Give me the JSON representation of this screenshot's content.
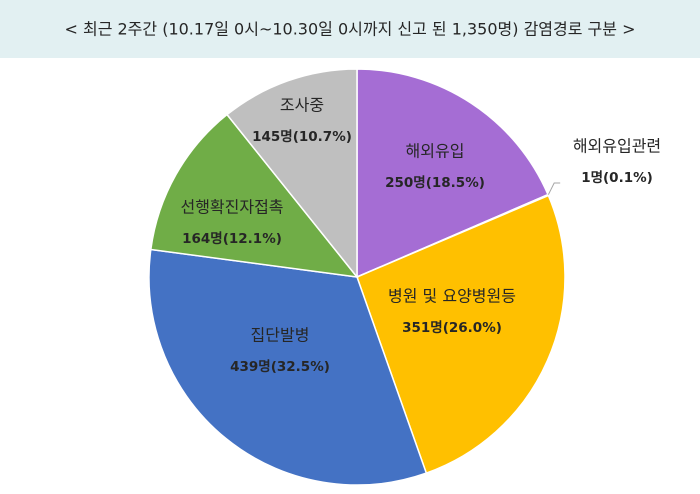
{
  "chart_data": {
    "type": "pie",
    "title": "< 최근 2주간 (10.17일 0시~10.30일 0시까지 신고 된 1,350명)  감염경로 구분 >",
    "categories": [
      "해외유입",
      "해외유입관련",
      "병원 및 요양병원등",
      "집단발병",
      "선행확진자접촉",
      "조사중"
    ],
    "values": [
      250,
      1,
      351,
      439,
      164,
      145
    ],
    "value_labels": [
      "250명(18.5%)",
      "1명(0.1%)",
      "351명(26.0%)",
      "439명(32.5%)",
      "164명(12.1%)",
      "145명(10.7%)"
    ],
    "colors": [
      "#a56dd4",
      "#ed7d31",
      "#ffc000",
      "#4472c4",
      "#70ad47",
      "#bfbfbf"
    ]
  }
}
